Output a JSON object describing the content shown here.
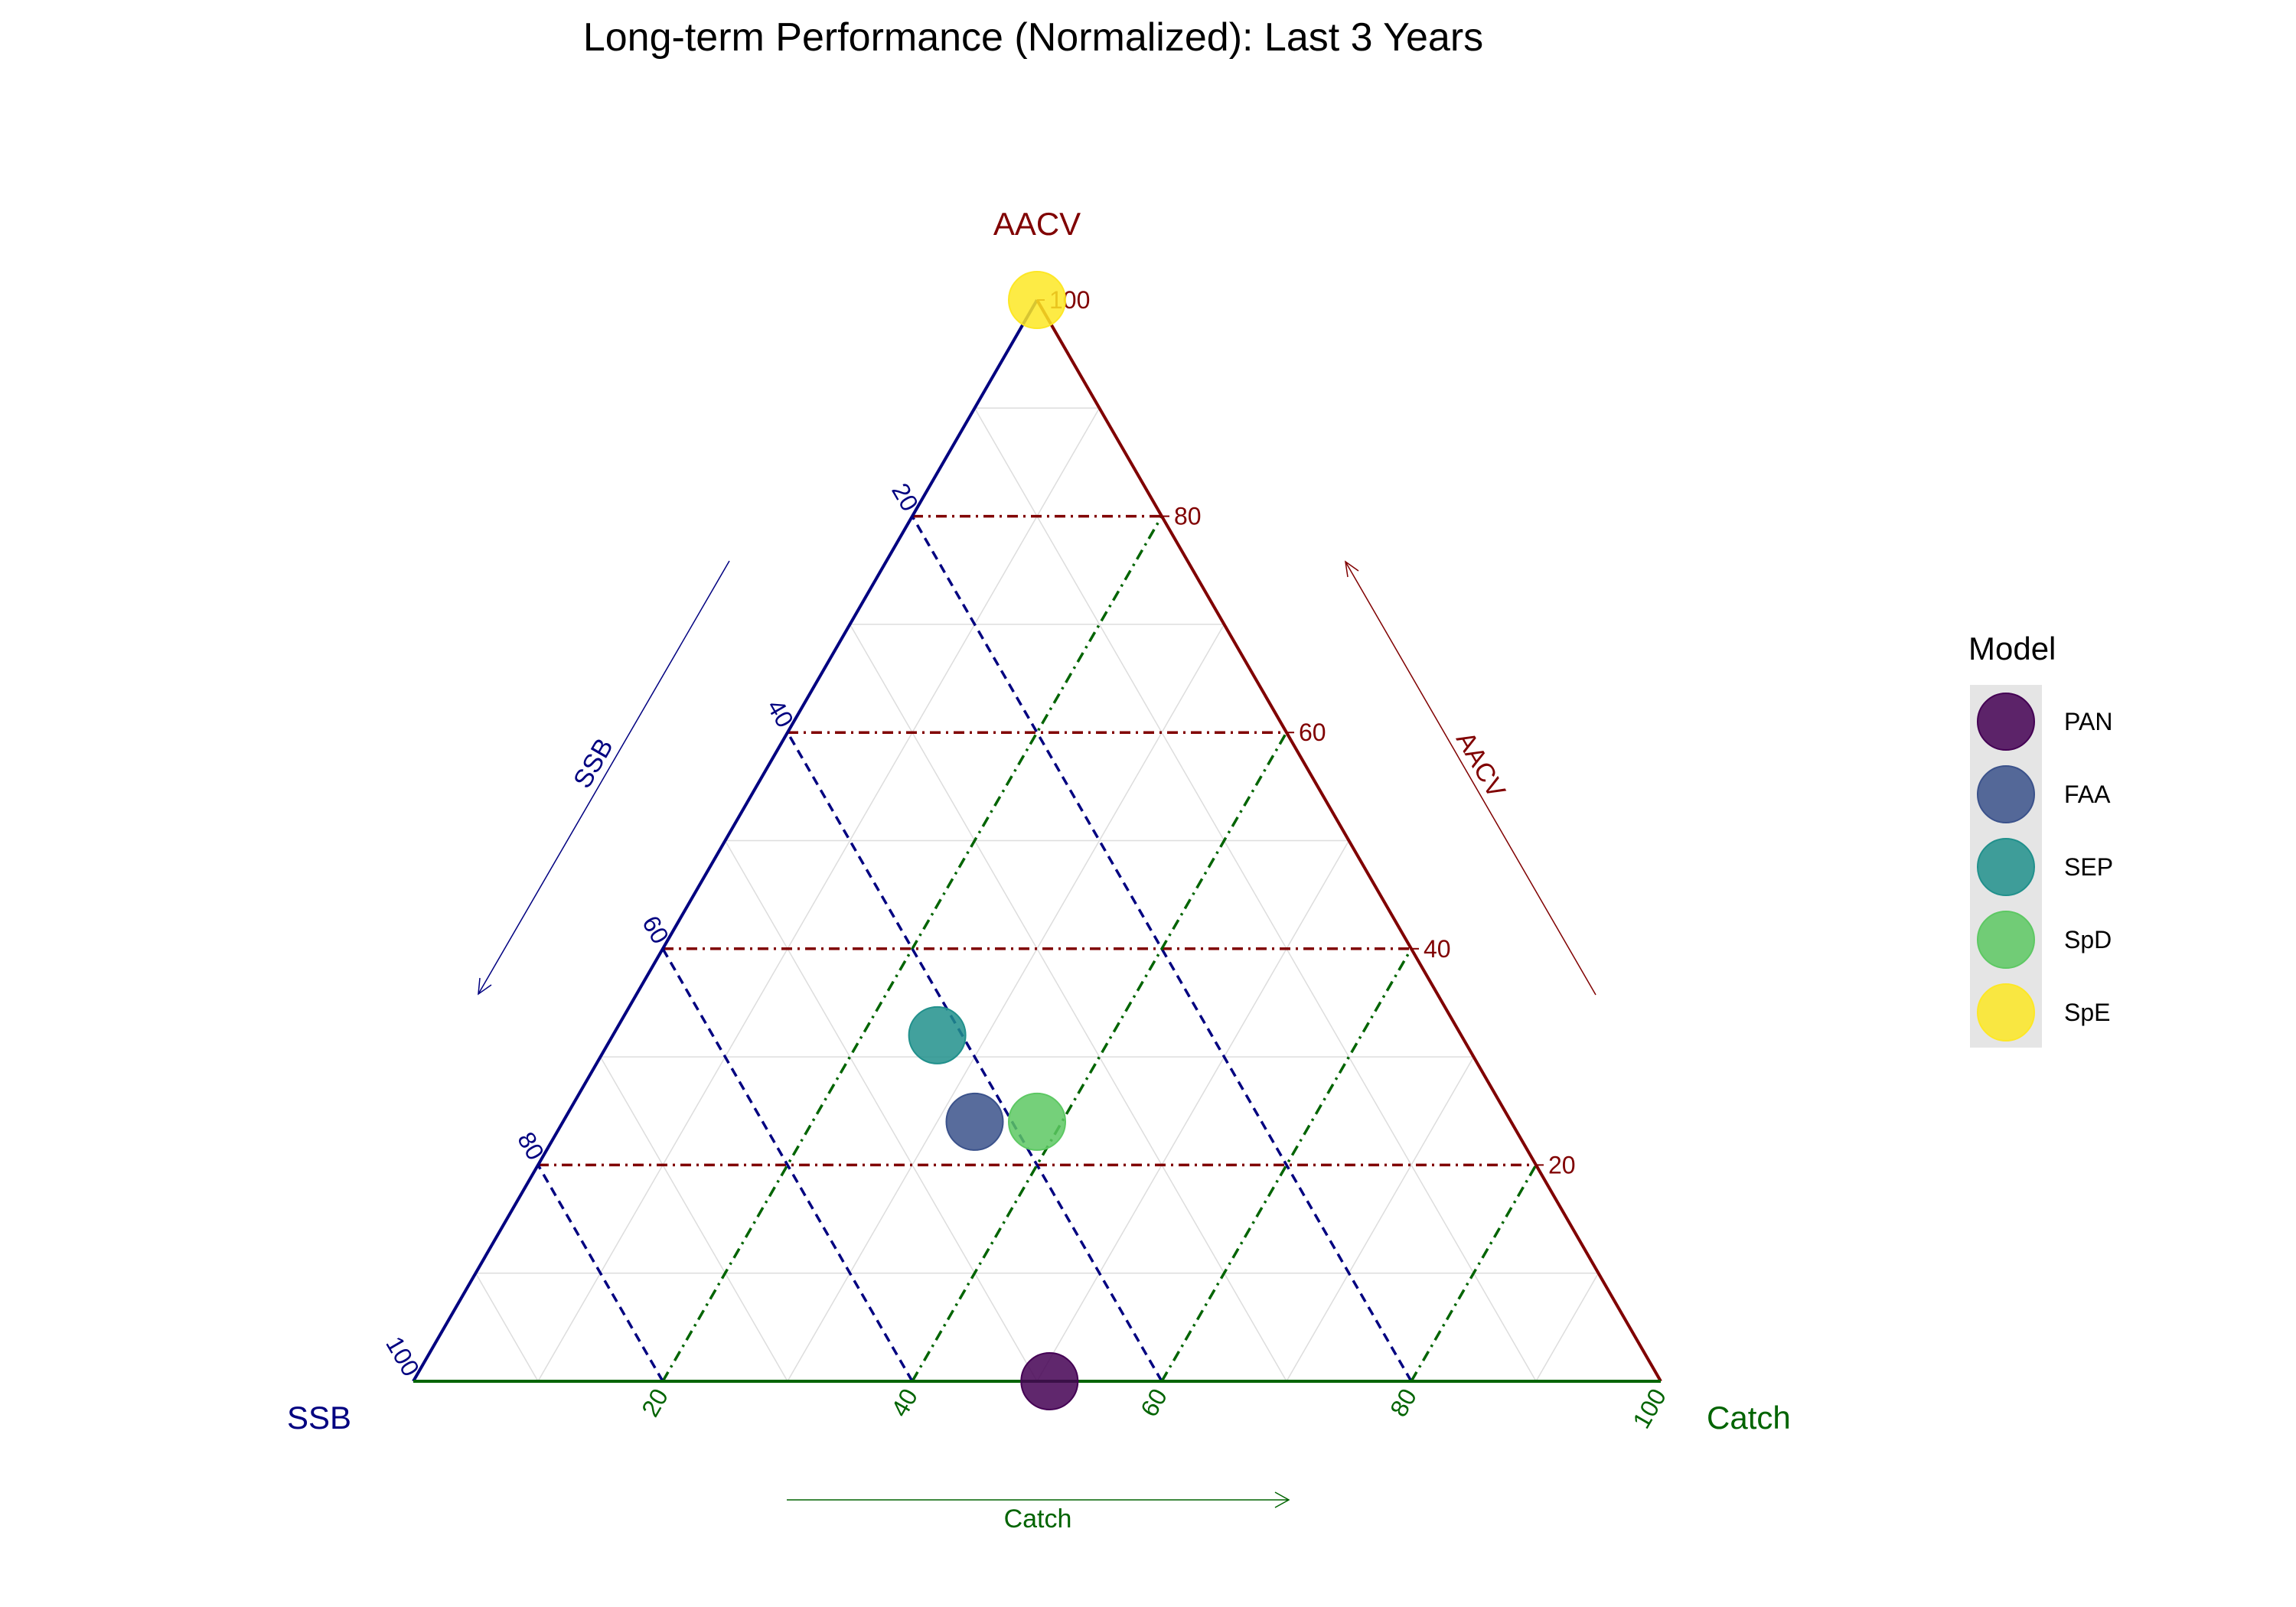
{
  "chart_data": {
    "type": "scatter",
    "subtype": "ternary",
    "title": "Long-term Performance (Normalized): Last 3 Years",
    "axes": {
      "top": {
        "name": "AACV",
        "color": "#800000",
        "arrow_label": "AACV"
      },
      "left": {
        "name": "SSB",
        "color": "#000080",
        "arrow_label": "SSB"
      },
      "right": {
        "name": "Catch",
        "color": "#006400",
        "arrow_label": "Catch"
      }
    },
    "ticks": [
      "20",
      "40",
      "60",
      "80",
      "100"
    ],
    "tick_values": [
      20,
      40,
      60,
      80,
      100
    ],
    "grid": true,
    "legend": {
      "title": "Model",
      "position": "right"
    },
    "series": [
      {
        "name": "PAN",
        "color": "#440154",
        "values": {
          "SSB": 49,
          "Catch": 51,
          "AACV": 0
        }
      },
      {
        "name": "FAA",
        "color": "#3B528B",
        "values": {
          "SSB": 43,
          "Catch": 33,
          "AACV": 24
        }
      },
      {
        "name": "SEP",
        "color": "#21908C",
        "values": {
          "SSB": 42,
          "Catch": 26,
          "AACV": 32
        }
      },
      {
        "name": "SpD",
        "color": "#5DC863",
        "values": {
          "SSB": 38,
          "Catch": 38,
          "AACV": 24
        }
      },
      {
        "name": "SpE",
        "color": "#FDE725",
        "values": {
          "SSB": 0,
          "Catch": 0,
          "AACV": 100
        }
      }
    ]
  }
}
